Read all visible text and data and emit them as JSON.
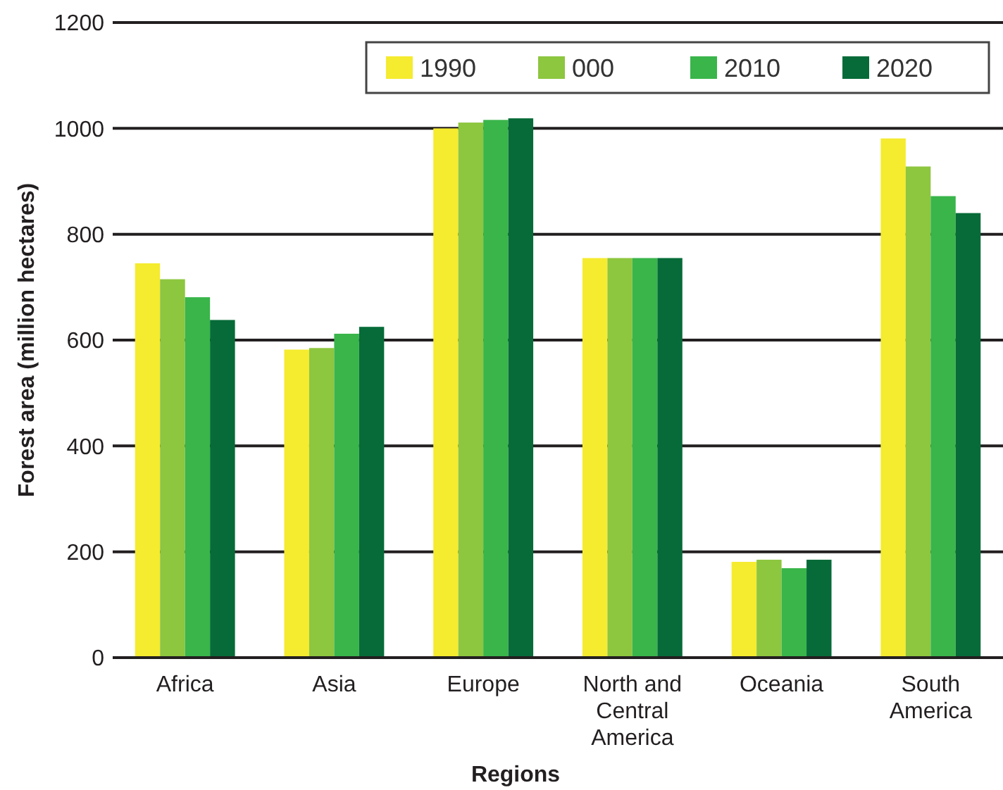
{
  "chart_data": {
    "type": "bar",
    "xlabel": "Regions",
    "ylabel": "Forest area (million hectares)",
    "categories": [
      "Africa",
      "Asia",
      "Europe",
      "North and Central America",
      "Oceania",
      "South America"
    ],
    "series": [
      {
        "name": "1990",
        "color": "#f5eb2f",
        "values": [
          745,
          582,
          1000,
          755,
          181,
          981
        ]
      },
      {
        "name": "000",
        "color": "#8dc63f",
        "values": [
          715,
          585,
          1011,
          755,
          185,
          928
        ]
      },
      {
        "name": "2010",
        "color": "#39b54a",
        "values": [
          681,
          612,
          1016,
          755,
          169,
          872
        ]
      },
      {
        "name": "2020",
        "color": "#066b38",
        "values": [
          638,
          625,
          1019,
          755,
          185,
          840
        ]
      }
    ],
    "ylim": [
      0,
      1200
    ],
    "yticks": [
      0,
      200,
      400,
      600,
      800,
      1000,
      1200
    ],
    "grid": "y",
    "legend": "top right"
  }
}
